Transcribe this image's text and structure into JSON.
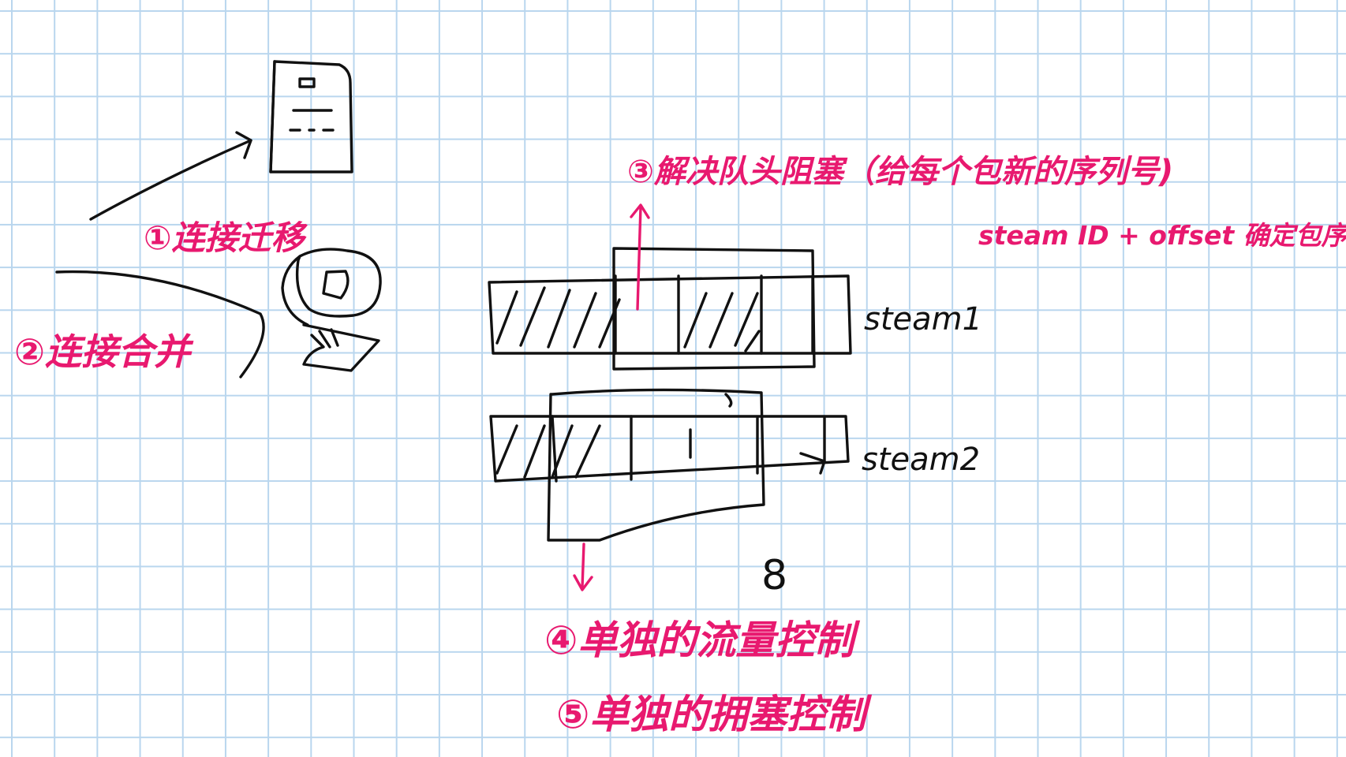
{
  "colors": {
    "grid": "#b9d6ee",
    "ink": "#111111",
    "annotation": "#e8196f",
    "background": "#ffffff"
  },
  "annotations": {
    "connection_migration": "①连接迁移",
    "connection_merge": "②连接合并",
    "hol_blocking": "③解决队头阻塞（给每个包新的序列号)",
    "hol_blocking_detail": "steam ID + offset 确定包序号",
    "flow_control": "④单独的流量控制",
    "congestion_control": "⑤单独的拥塞控制"
  },
  "streams": {
    "stream1": "steam1",
    "stream2": "steam2"
  },
  "page_number": "8",
  "icons": [
    "phone-icon",
    "laptop-icon"
  ]
}
